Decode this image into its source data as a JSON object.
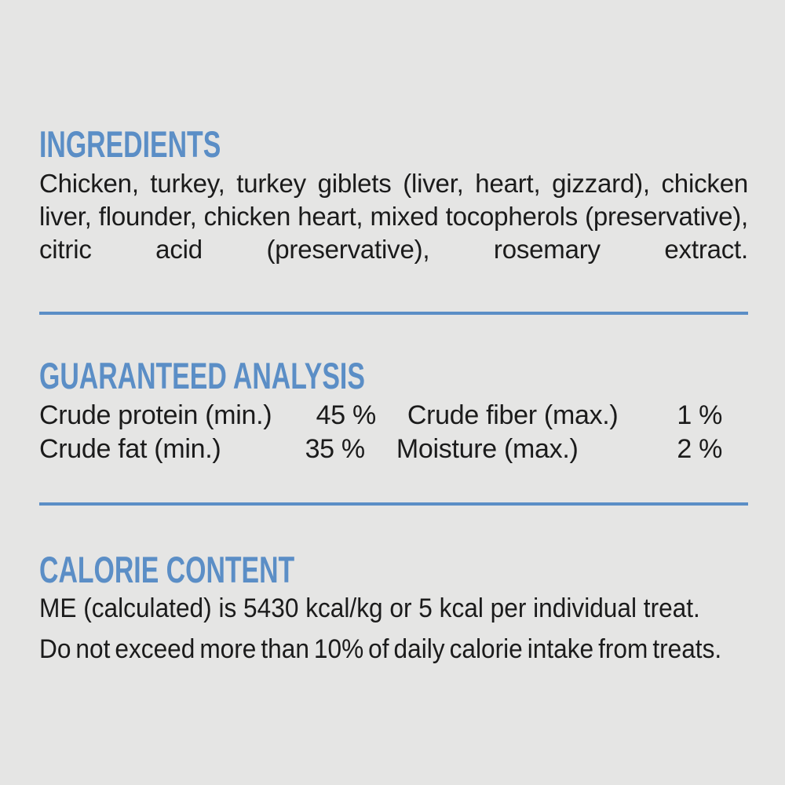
{
  "colors": {
    "background": "#e5e5e4",
    "accent_blue": "#5b8ec6",
    "text": "#1b1b1b"
  },
  "ingredients": {
    "heading": "INGREDIENTS",
    "text": "Chicken, turkey, turkey giblets (liver, heart, gizzard), chicken liver, flounder, chicken heart, mixed tocopherols (preservative), citric acid (preservative), rosemary extract."
  },
  "guaranteed_analysis": {
    "heading": "GUARANTEED ANALYSIS",
    "rows": [
      {
        "left_label": "Crude protein (min.)",
        "left_value": "45 %",
        "right_label": "Crude fiber (max.)",
        "right_value": "1 %"
      },
      {
        "left_label": "Crude fat (min.)",
        "left_value": "35 %",
        "right_label": "Moisture (max.)",
        "right_value": "2 %"
      }
    ]
  },
  "calorie_content": {
    "heading": "CALORIE CONTENT",
    "line1": "ME (calculated) is 5430 kcal/kg or 5 kcal per individual treat.",
    "line2": "Do not exceed more than 10% of daily calorie intake from treats."
  }
}
